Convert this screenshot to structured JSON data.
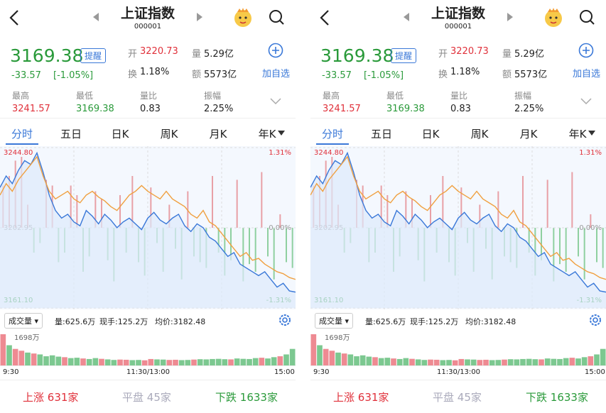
{
  "header": {
    "title": "上证指数",
    "code": "000001"
  },
  "quote": {
    "price": "3169.38",
    "change": "-33.57",
    "change_pct": "[-1.05%]",
    "remind": "提醒",
    "open_label": "开",
    "open": "3220.73",
    "vol_label": "量",
    "vol": "5.29亿",
    "turnover_label": "换",
    "turnover": "1.18%",
    "amount_label": "额",
    "amount": "5573亿",
    "add": "加自选",
    "high_label": "最高",
    "high": "3241.57",
    "low_label": "最低",
    "low": "3169.38",
    "ratio_label": "量比",
    "ratio": "0.83",
    "amp_label": "振幅",
    "amp": "2.25%"
  },
  "tabs": [
    "分时",
    "五日",
    "日K",
    "周K",
    "月K",
    "年K"
  ],
  "intraday": {
    "ylim": [
      3161.1,
      3244.8
    ],
    "yticks": [
      {
        "value": 3244.8,
        "label": "3244.80"
      },
      {
        "value": 3202.95,
        "label": "3202.95"
      },
      {
        "value": 3161.1,
        "label": "3161.10"
      }
    ],
    "pct_labels": [
      "1.31%",
      "0.00%",
      "-1.31%"
    ],
    "series": [
      {
        "name": "price",
        "color": "#3a78d8",
        "values": [
          3224,
          3230,
          3226,
          3233,
          3238,
          3236,
          3242,
          3232,
          3220,
          3212,
          3208,
          3210,
          3206,
          3204,
          3212,
          3209,
          3205,
          3210,
          3207,
          3203,
          3206,
          3208,
          3205,
          3202,
          3208,
          3211,
          3207,
          3205,
          3208,
          3210,
          3204,
          3201,
          3205,
          3203,
          3198,
          3196,
          3192,
          3188,
          3190,
          3184,
          3182,
          3180,
          3178,
          3180,
          3176,
          3172,
          3174,
          3170,
          3169.38
        ]
      },
      {
        "name": "average",
        "color": "#f0a040",
        "values": [
          3220,
          3226,
          3222,
          3228,
          3232,
          3236,
          3240,
          3230,
          3222,
          3218,
          3220,
          3222,
          3218,
          3216,
          3220,
          3222,
          3219,
          3217,
          3214,
          3212,
          3216,
          3220,
          3222,
          3225,
          3222,
          3220,
          3218,
          3222,
          3218,
          3216,
          3214,
          3210,
          3208,
          3212,
          3206,
          3204,
          3200,
          3196,
          3192,
          3188,
          3190,
          3186,
          3187,
          3184,
          3182,
          3180,
          3179,
          3177,
          3176
        ]
      }
    ],
    "bars": [
      3225,
      3230,
      3238,
      3240,
      3215,
      3190,
      3195,
      3228,
      3225,
      3185,
      3190,
      3225,
      3220,
      3180,
      3188,
      3222,
      3218,
      3186,
      3175,
      3220,
      3190,
      3230,
      3185,
      3178,
      3224,
      3195,
      3180,
      3215,
      3192,
      3176,
      3222,
      3188,
      3185,
      3182,
      3230,
      3190,
      3178,
      3186,
      3228,
      3175,
      3184,
      3180,
      3232,
      3188,
      3176,
      3210,
      3185,
      3182
    ]
  },
  "volume": {
    "selector": "成交量",
    "vol": "量:625.6万",
    "hand": "现手:125.2万",
    "avg": "均价:3182.48",
    "max_label": "1698万",
    "ylim": [
      0,
      1698
    ],
    "values": [
      1698,
      1100,
      900,
      800,
      700,
      650,
      600,
      500,
      550,
      480,
      450,
      400,
      420,
      380,
      350,
      400,
      360,
      330,
      300,
      320,
      310,
      290,
      300,
      280,
      350,
      330,
      320,
      300,
      310,
      290,
      300,
      320,
      340,
      330,
      350,
      360,
      340,
      330,
      380,
      360,
      350,
      400,
      420,
      380,
      450,
      500,
      600,
      900
    ],
    "times": [
      "9:30",
      "11:30/13:00",
      "15:00"
    ]
  },
  "footer": {
    "up_label": "上涨",
    "up": "631家",
    "flat_label": "平盘",
    "flat": "45家",
    "down_label": "下跌",
    "down": "1633家"
  }
}
